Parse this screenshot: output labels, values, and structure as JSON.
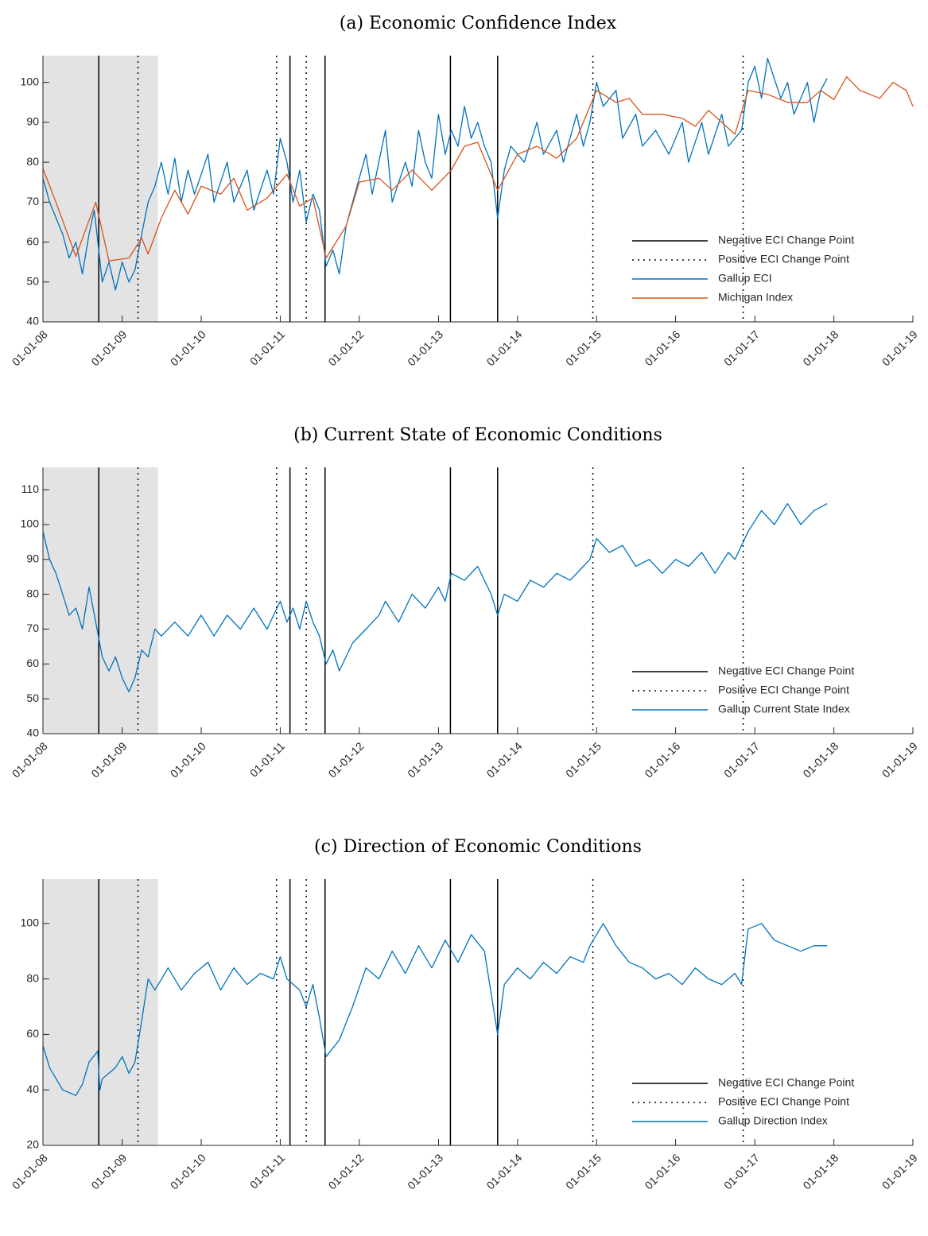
{
  "chart_data": [
    {
      "type": "line",
      "title": "(a) Economic Confidence Index",
      "xlim": [
        "2008-01-01",
        "2019-01-01"
      ],
      "xticks": [
        {
          "value": "2008-01-01",
          "label": "01-01-08"
        },
        {
          "value": "2009-01-01",
          "label": "01-01-09"
        },
        {
          "value": "2010-01-01",
          "label": "01-01-10"
        },
        {
          "value": "2011-01-01",
          "label": "01-01-11"
        },
        {
          "value": "2012-01-01",
          "label": "01-01-12"
        },
        {
          "value": "2013-01-01",
          "label": "01-01-13"
        },
        {
          "value": "2014-01-01",
          "label": "01-01-14"
        },
        {
          "value": "2015-01-01",
          "label": "01-01-15"
        },
        {
          "value": "2016-01-01",
          "label": "01-01-16"
        },
        {
          "value": "2017-01-01",
          "label": "01-01-17"
        },
        {
          "value": "2018-01-01",
          "label": "01-01-18"
        },
        {
          "value": "2019-01-01",
          "label": "01-01-19"
        }
      ],
      "ylim": [
        40,
        106.7
      ],
      "yticks": [
        40,
        50,
        60,
        70,
        80,
        90,
        100
      ],
      "shade": [
        "2008-01-01",
        "2009-06-15"
      ],
      "shade_color": "#e3e3e3",
      "legend": "lower right",
      "series": [
        {
          "name": "Negative ECI Change Point",
          "color": "#000000",
          "dash": "solid",
          "vlines": [
            "2008-09-15",
            "2011-02-15",
            "2011-07-27",
            "2013-02-25",
            "2013-10-01"
          ]
        },
        {
          "name": "Positive ECI Change Point",
          "color": "#000000",
          "dash": "dotted",
          "vlines": [
            "2009-03-15",
            "2010-12-15",
            "2011-05-01",
            "2014-12-15",
            "2016-11-08"
          ]
        },
        {
          "name": "Gallup ECI",
          "color": "#0072bd",
          "x": [
            "2008-01-01",
            "2008-02-01",
            "2008-04-01",
            "2008-05-01",
            "2008-06-01",
            "2008-07-01",
            "2008-08-01",
            "2008-08-25",
            "2008-09-15",
            "2008-10-01",
            "2008-11-01",
            "2008-12-01",
            "2009-01-01",
            "2009-02-01",
            "2009-03-01",
            "2009-04-01",
            "2009-05-01",
            "2009-06-01",
            "2009-07-01",
            "2009-08-01",
            "2009-09-01",
            "2009-10-01",
            "2009-11-01",
            "2009-12-01",
            "2010-02-01",
            "2010-03-01",
            "2010-05-01",
            "2010-06-01",
            "2010-08-01",
            "2010-09-01",
            "2010-11-01",
            "2010-12-01",
            "2011-01-01",
            "2011-02-01",
            "2011-03-01",
            "2011-04-01",
            "2011-05-01",
            "2011-06-01",
            "2011-07-01",
            "2011-08-01",
            "2011-09-01",
            "2011-10-01",
            "2011-11-01",
            "2011-12-01",
            "2012-02-01",
            "2012-03-01",
            "2012-05-01",
            "2012-06-01",
            "2012-08-01",
            "2012-09-01",
            "2012-10-01",
            "2012-11-01",
            "2012-12-01",
            "2013-01-01",
            "2013-02-01",
            "2013-03-01",
            "2013-04-01",
            "2013-05-01",
            "2013-06-01",
            "2013-07-01",
            "2013-08-01",
            "2013-09-01",
            "2013-10-01",
            "2013-11-01",
            "2013-12-01",
            "2014-02-01",
            "2014-04-01",
            "2014-05-01",
            "2014-07-01",
            "2014-08-01",
            "2014-10-01",
            "2014-11-01",
            "2014-12-01",
            "2015-01-01",
            "2015-02-01",
            "2015-04-01",
            "2015-05-01",
            "2015-07-01",
            "2015-08-01",
            "2015-10-01",
            "2015-12-01",
            "2016-02-01",
            "2016-03-01",
            "2016-05-01",
            "2016-06-01",
            "2016-08-01",
            "2016-09-01",
            "2016-10-01",
            "2016-11-01",
            "2016-12-01",
            "2017-01-01",
            "2017-02-01",
            "2017-03-01",
            "2017-05-01",
            "2017-06-01",
            "2017-07-01",
            "2017-09-01",
            "2017-10-01",
            "2017-11-01",
            "2017-12-01"
          ],
          "values": [
            76,
            70,
            62,
            56,
            60,
            52,
            62,
            68,
            58,
            50,
            55,
            48,
            55,
            50,
            53,
            62,
            70,
            74,
            80,
            72,
            81,
            70,
            78,
            72,
            82,
            70,
            80,
            70,
            78,
            68,
            78,
            72,
            86,
            80,
            70,
            78,
            65,
            72,
            68,
            54,
            58,
            52,
            64,
            70,
            82,
            72,
            88,
            70,
            80,
            74,
            88,
            80,
            76,
            92,
            82,
            88,
            84,
            94,
            86,
            90,
            84,
            80,
            66,
            78,
            84,
            80,
            90,
            82,
            88,
            80,
            92,
            84,
            90,
            100,
            94,
            98,
            86,
            92,
            84,
            88,
            82,
            90,
            80,
            90,
            82,
            92,
            84,
            86,
            88,
            100,
            104,
            96,
            106,
            96,
            100,
            92,
            100,
            90,
            98,
            101
          ]
        },
        {
          "name": "Michigan Index",
          "color": "#d95319",
          "x": [
            "2008-01-01",
            "2008-03-01",
            "2008-06-01",
            "2008-09-01",
            "2008-11-01",
            "2009-02-01",
            "2009-04-01",
            "2009-05-01",
            "2009-07-01",
            "2009-09-01",
            "2009-11-01",
            "2010-01-01",
            "2010-04-01",
            "2010-06-01",
            "2010-08-01",
            "2010-11-01",
            "2011-02-01",
            "2011-04-01",
            "2011-06-01",
            "2011-08-01",
            "2011-11-01",
            "2012-01-01",
            "2012-04-01",
            "2012-06-01",
            "2012-09-01",
            "2012-12-01",
            "2013-03-01",
            "2013-05-01",
            "2013-07-01",
            "2013-10-01",
            "2014-01-01",
            "2014-04-01",
            "2014-07-01",
            "2014-10-01",
            "2015-01-01",
            "2015-04-01",
            "2015-06-01",
            "2015-08-01",
            "2015-11-01",
            "2016-02-01",
            "2016-04-01",
            "2016-06-01",
            "2016-08-01",
            "2016-10-01",
            "2016-12-01",
            "2017-03-01",
            "2017-06-01",
            "2017-09-01",
            "2017-11-01",
            "2018-01-01",
            "2018-03-01",
            "2018-05-01",
            "2018-08-01",
            "2018-10-01",
            "2018-12-01",
            "2019-01-01"
          ],
          "values": [
            78.4,
            70,
            56.4,
            70,
            55.3,
            56,
            61,
            57,
            66,
            73,
            67,
            74,
            72,
            76,
            68,
            71,
            77,
            69,
            71,
            56,
            64,
            75,
            76,
            73,
            78,
            73,
            78,
            84,
            85,
            73,
            82,
            84,
            81,
            86,
            98,
            95,
            96,
            92,
            92,
            91,
            89,
            93,
            90,
            87,
            98,
            97,
            95,
            95,
            98,
            95.7,
            101.4,
            98,
            96,
            100,
            98,
            94
          ]
        }
      ]
    },
    {
      "type": "line",
      "title": "(b) Current State of Economic Conditions",
      "xlim": [
        "2008-01-01",
        "2019-01-01"
      ],
      "xticks": [
        {
          "value": "2008-01-01",
          "label": "01-01-08"
        },
        {
          "value": "2009-01-01",
          "label": "01-01-09"
        },
        {
          "value": "2010-01-01",
          "label": "01-01-10"
        },
        {
          "value": "2011-01-01",
          "label": "01-01-11"
        },
        {
          "value": "2012-01-01",
          "label": "01-01-12"
        },
        {
          "value": "2013-01-01",
          "label": "01-01-13"
        },
        {
          "value": "2014-01-01",
          "label": "01-01-14"
        },
        {
          "value": "2015-01-01",
          "label": "01-01-15"
        },
        {
          "value": "2016-01-01",
          "label": "01-01-16"
        },
        {
          "value": "2017-01-01",
          "label": "01-01-17"
        },
        {
          "value": "2018-01-01",
          "label": "01-01-18"
        },
        {
          "value": "2019-01-01",
          "label": "01-01-19"
        }
      ],
      "ylim": [
        40,
        116.4
      ],
      "yticks": [
        40,
        50,
        60,
        70,
        80,
        90,
        100,
        110
      ],
      "shade": [
        "2008-01-01",
        "2009-06-15"
      ],
      "shade_color": "#e3e3e3",
      "legend": "lower right",
      "series": [
        {
          "name": "Negative ECI Change Point",
          "color": "#000000",
          "dash": "solid",
          "vlines": [
            "2008-09-15",
            "2011-02-15",
            "2011-07-27",
            "2013-02-25",
            "2013-10-01"
          ]
        },
        {
          "name": "Positive ECI Change Point",
          "color": "#000000",
          "dash": "dotted",
          "vlines": [
            "2009-03-15",
            "2010-12-15",
            "2011-05-01",
            "2014-12-15",
            "2016-11-08"
          ]
        },
        {
          "name": "Gallup Current State Index",
          "color": "#0072bd",
          "x": [
            "2008-01-01",
            "2008-02-01",
            "2008-03-01",
            "2008-04-01",
            "2008-05-01",
            "2008-06-01",
            "2008-07-01",
            "2008-08-01",
            "2008-09-01",
            "2008-10-01",
            "2008-11-01",
            "2008-12-01",
            "2009-01-01",
            "2009-02-01",
            "2009-03-01",
            "2009-04-01",
            "2009-05-01",
            "2009-06-01",
            "2009-07-01",
            "2009-09-01",
            "2009-11-01",
            "2010-01-01",
            "2010-03-01",
            "2010-05-01",
            "2010-07-01",
            "2010-09-01",
            "2010-11-01",
            "2011-01-01",
            "2011-02-01",
            "2011-03-01",
            "2011-04-01",
            "2011-05-01",
            "2011-06-01",
            "2011-07-01",
            "2011-08-01",
            "2011-09-01",
            "2011-10-01",
            "2011-12-01",
            "2012-02-01",
            "2012-04-01",
            "2012-05-01",
            "2012-07-01",
            "2012-09-01",
            "2012-11-01",
            "2013-01-01",
            "2013-02-01",
            "2013-03-01",
            "2013-05-01",
            "2013-07-01",
            "2013-09-01",
            "2013-10-01",
            "2013-11-01",
            "2014-01-01",
            "2014-03-01",
            "2014-05-01",
            "2014-07-01",
            "2014-09-01",
            "2014-11-01",
            "2014-12-01",
            "2015-01-01",
            "2015-03-01",
            "2015-05-01",
            "2015-07-01",
            "2015-09-01",
            "2015-11-01",
            "2016-01-01",
            "2016-03-01",
            "2016-05-01",
            "2016-07-01",
            "2016-09-01",
            "2016-10-01",
            "2016-11-01",
            "2016-12-01",
            "2017-02-01",
            "2017-04-01",
            "2017-06-01",
            "2017-08-01",
            "2017-10-01",
            "2017-12-01"
          ],
          "values": [
            98,
            90,
            86,
            80,
            74,
            76,
            70,
            82,
            72,
            62,
            58,
            62,
            56,
            52,
            56,
            64,
            62,
            70,
            68,
            72,
            68,
            74,
            68,
            74,
            70,
            76,
            70,
            78,
            72,
            76,
            70,
            78,
            72,
            68,
            60,
            64,
            58,
            66,
            70,
            74,
            78,
            72,
            80,
            76,
            82,
            78,
            86,
            84,
            88,
            80,
            74,
            80,
            78,
            84,
            82,
            86,
            84,
            88,
            90,
            96,
            92,
            94,
            88,
            90,
            86,
            90,
            88,
            92,
            86,
            92,
            90,
            94,
            98,
            104,
            100,
            106,
            100,
            104,
            106
          ]
        }
      ]
    },
    {
      "type": "line",
      "title": "(c) Direction of Economic Conditions",
      "xlim": [
        "2008-01-01",
        "2019-01-01"
      ],
      "xticks": [
        {
          "value": "2008-01-01",
          "label": "01-01-08"
        },
        {
          "value": "2009-01-01",
          "label": "01-01-09"
        },
        {
          "value": "2010-01-01",
          "label": "01-01-10"
        },
        {
          "value": "2011-01-01",
          "label": "01-01-11"
        },
        {
          "value": "2012-01-01",
          "label": "01-01-12"
        },
        {
          "value": "2013-01-01",
          "label": "01-01-13"
        },
        {
          "value": "2014-01-01",
          "label": "01-01-14"
        },
        {
          "value": "2015-01-01",
          "label": "01-01-15"
        },
        {
          "value": "2016-01-01",
          "label": "01-01-16"
        },
        {
          "value": "2017-01-01",
          "label": "01-01-17"
        },
        {
          "value": "2018-01-01",
          "label": "01-01-18"
        },
        {
          "value": "2019-01-01",
          "label": "01-01-19"
        }
      ],
      "ylim": [
        20,
        116
      ],
      "yticks": [
        20,
        40,
        60,
        80,
        100
      ],
      "shade": [
        "2008-01-01",
        "2009-06-15"
      ],
      "shade_color": "#e3e3e3",
      "legend": "lower right",
      "series": [
        {
          "name": "Negative ECI Change Point",
          "color": "#000000",
          "dash": "solid",
          "vlines": [
            "2008-09-15",
            "2011-02-15",
            "2011-07-27",
            "2013-02-25",
            "2013-10-01"
          ]
        },
        {
          "name": "Positive ECI Change Point",
          "color": "#000000",
          "dash": "dotted",
          "vlines": [
            "2009-03-15",
            "2010-12-15",
            "2011-05-01",
            "2014-12-15",
            "2016-11-08"
          ]
        },
        {
          "name": "Gallup Direction Index",
          "color": "#0072bd",
          "x": [
            "2008-01-01",
            "2008-02-01",
            "2008-04-01",
            "2008-06-01",
            "2008-07-01",
            "2008-08-01",
            "2008-09-10",
            "2008-09-20",
            "2008-10-01",
            "2008-12-01",
            "2009-01-01",
            "2009-02-01",
            "2009-03-01",
            "2009-04-01",
            "2009-05-01",
            "2009-06-01",
            "2009-08-01",
            "2009-10-01",
            "2009-12-01",
            "2010-02-01",
            "2010-04-01",
            "2010-06-01",
            "2010-08-01",
            "2010-10-01",
            "2010-12-01",
            "2011-01-01",
            "2011-02-01",
            "2011-04-01",
            "2011-05-01",
            "2011-06-01",
            "2011-07-01",
            "2011-08-01",
            "2011-10-01",
            "2011-12-01",
            "2012-02-01",
            "2012-04-01",
            "2012-06-01",
            "2012-08-01",
            "2012-10-01",
            "2012-12-01",
            "2013-02-01",
            "2013-04-01",
            "2013-06-01",
            "2013-08-01",
            "2013-10-01",
            "2013-11-01",
            "2014-01-01",
            "2014-03-01",
            "2014-05-01",
            "2014-07-01",
            "2014-09-01",
            "2014-11-01",
            "2014-12-01",
            "2015-02-01",
            "2015-04-01",
            "2015-06-01",
            "2015-08-01",
            "2015-10-01",
            "2015-12-01",
            "2016-02-01",
            "2016-04-01",
            "2016-06-01",
            "2016-08-01",
            "2016-10-01",
            "2016-11-01",
            "2016-12-01",
            "2017-02-01",
            "2017-04-01",
            "2017-06-01",
            "2017-08-01",
            "2017-10-01",
            "2017-12-01"
          ],
          "values": [
            56,
            48,
            40,
            38,
            42,
            50,
            54,
            40,
            44,
            48,
            52,
            46,
            50,
            65,
            80,
            76,
            84,
            76,
            82,
            86,
            76,
            84,
            78,
            82,
            80,
            88,
            80,
            76,
            70,
            78,
            66,
            52,
            58,
            70,
            84,
            80,
            90,
            82,
            92,
            84,
            94,
            86,
            96,
            90,
            60,
            78,
            84,
            80,
            86,
            82,
            88,
            86,
            92,
            100,
            92,
            86,
            84,
            80,
            82,
            78,
            84,
            80,
            78,
            82,
            78,
            98,
            100,
            94,
            92,
            90,
            92,
            92
          ]
        }
      ]
    }
  ]
}
